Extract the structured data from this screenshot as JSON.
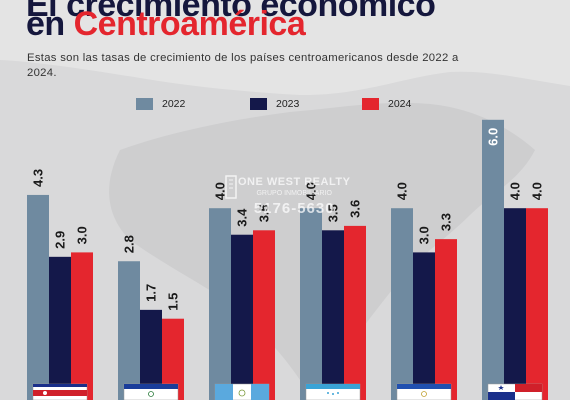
{
  "header": {
    "title_line1": "El crecimiento económico",
    "title_line2_prefix": "en ",
    "title_line2_highlight": "Centroamérica",
    "subtitle": "Estas son las tasas de crecimiento de los países centroamericanos desde 2022 a 2024."
  },
  "watermark": {
    "name": "ONE WEST REALTY",
    "tagline": "GRUPO INMOBILIARIO",
    "phone": "5176-5630"
  },
  "colors": {
    "series_2022": "#6f8aa0",
    "series_2023": "#14184a",
    "series_2024": "#e4262e",
    "title_dark": "#15173d",
    "title_accent": "#e4262e"
  },
  "chart_data": {
    "type": "bar",
    "title": "El crecimiento económico en Centroamérica",
    "categories": [
      "Costa Rica",
      "El Salvador",
      "Guatemala",
      "Honduras",
      "Nicaragua",
      "Panamá"
    ],
    "series": [
      {
        "name": "2022",
        "values": [
          4.3,
          2.8,
          4.0,
          4.0,
          4.0,
          6.0
        ]
      },
      {
        "name": "2023",
        "values": [
          2.9,
          1.7,
          3.4,
          3.5,
          3.0,
          4.0
        ]
      },
      {
        "name": "2024",
        "values": [
          3.0,
          1.5,
          3.5,
          3.6,
          3.3,
          4.0
        ]
      }
    ],
    "value_labels": [
      [
        "4.3",
        "2.8",
        "4.0",
        "4.0",
        "4.0",
        "6.0"
      ],
      [
        "2.9",
        "1.7",
        "3.4",
        "3.5",
        "3.0",
        "4.0"
      ],
      [
        "3.0",
        "1.5",
        "3.5",
        "3.6",
        "3.3",
        "4.0"
      ]
    ],
    "legend_position": "top-center",
    "grid": false,
    "category_icons": [
      "costa-rica-flag-icon",
      "el-salvador-flag-icon",
      "guatemala-flag-icon",
      "honduras-flag-icon",
      "nicaragua-flag-icon",
      "panama-flag-icon"
    ]
  }
}
